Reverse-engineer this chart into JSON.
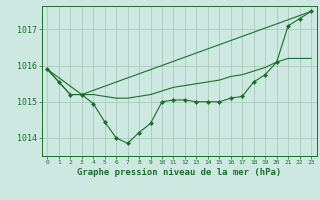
{
  "background_color": "#cce8e0",
  "grid_color": "#aaccbb",
  "line_color": "#1a6e2a",
  "title": "Graphe pression niveau de la mer (hPa)",
  "yticks": [
    1014,
    1015,
    1016,
    1017
  ],
  "ylim": [
    1013.5,
    1017.65
  ],
  "xlim": [
    -0.5,
    23.5
  ],
  "series1_x": [
    0,
    1,
    2,
    3,
    4,
    5,
    6,
    7,
    8,
    9,
    10,
    11,
    12,
    13,
    14,
    15,
    16,
    17,
    18,
    19,
    20,
    21,
    22,
    23
  ],
  "series1_y": [
    1015.9,
    1015.55,
    1015.2,
    1015.2,
    1014.95,
    1014.45,
    1014.0,
    1013.85,
    1014.15,
    1014.4,
    1015.0,
    1015.05,
    1015.05,
    1015.0,
    1015.0,
    1015.0,
    1015.1,
    1015.15,
    1015.55,
    1015.75,
    1016.1,
    1017.1,
    1017.3,
    1017.5
  ],
  "series2_x": [
    0,
    1,
    2,
    3,
    23
  ],
  "series2_y": [
    1015.9,
    1015.55,
    1015.2,
    1015.2,
    1017.5
  ],
  "series3_x": [
    0,
    3,
    4,
    5,
    6,
    7,
    8,
    9,
    10,
    11,
    12,
    13,
    14,
    15,
    16,
    17,
    18,
    19,
    20,
    21,
    22,
    23
  ],
  "series3_y": [
    1015.9,
    1015.2,
    1015.2,
    1015.15,
    1015.1,
    1015.1,
    1015.15,
    1015.2,
    1015.3,
    1015.4,
    1015.45,
    1015.5,
    1015.55,
    1015.6,
    1015.7,
    1015.75,
    1015.85,
    1015.95,
    1016.1,
    1016.2,
    1016.2,
    1016.2
  ]
}
